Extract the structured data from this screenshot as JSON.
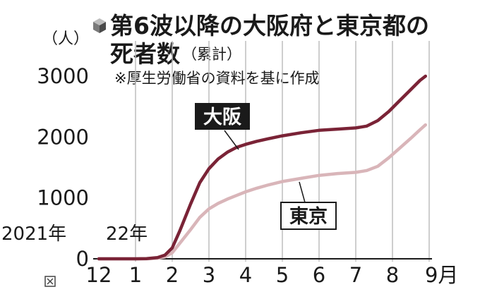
{
  "title_line1": "第6波以降の大阪府と東京都の",
  "title_line2": "死者数",
  "title_suffix": "（累計）",
  "source_note": "※厚生労働省の資料を基に作成",
  "icon": "cube-icon",
  "corner_icon": "expand-icon",
  "chart_data": {
    "type": "line",
    "ylabel": "（人）",
    "ylim": [
      0,
      3000
    ],
    "yticks": [
      "0",
      "1000",
      "2000",
      "3000"
    ],
    "xlim": [
      0,
      9
    ],
    "xticks": [
      {
        "label": "12",
        "x": 0
      },
      {
        "label": "1",
        "x": 1
      },
      {
        "label": "2",
        "x": 2
      },
      {
        "label": "3",
        "x": 3
      },
      {
        "label": "4",
        "x": 4
      },
      {
        "label": "5",
        "x": 5
      },
      {
        "label": "6",
        "x": 6
      },
      {
        "label": "7",
        "x": 7
      },
      {
        "label": "8",
        "x": 8
      },
      {
        "label": "9月",
        "x": 9
      }
    ],
    "year_labels": [
      "2021年",
      "22年"
    ],
    "grid": "vertical",
    "series": [
      {
        "name": "大阪",
        "color": "#7a2336",
        "x": [
          0,
          0.5,
          1,
          1.3,
          1.6,
          1.8,
          2,
          2.2,
          2.5,
          2.75,
          3,
          3.25,
          3.5,
          3.75,
          4,
          4.3,
          4.6,
          5,
          5.5,
          6,
          6.5,
          7,
          7.3,
          7.6,
          7.9,
          8.2,
          8.5,
          8.75,
          8.9
        ],
        "values": [
          0,
          0,
          0,
          2,
          20,
          60,
          180,
          450,
          900,
          1250,
          1480,
          1640,
          1750,
          1830,
          1880,
          1930,
          1970,
          2020,
          2070,
          2110,
          2130,
          2150,
          2180,
          2270,
          2420,
          2600,
          2780,
          2930,
          3000
        ]
      },
      {
        "name": "東京",
        "color": "#d9b5b9",
        "x": [
          0,
          0.5,
          1,
          1.3,
          1.6,
          1.8,
          2,
          2.2,
          2.5,
          2.75,
          3,
          3.25,
          3.5,
          3.75,
          4,
          4.3,
          4.6,
          5,
          5.5,
          6,
          6.5,
          7,
          7.3,
          7.6,
          7.9,
          8.2,
          8.5,
          8.75,
          8.9
        ],
        "values": [
          0,
          0,
          0,
          0,
          10,
          30,
          100,
          250,
          480,
          680,
          820,
          910,
          980,
          1040,
          1100,
          1160,
          1210,
          1270,
          1320,
          1370,
          1400,
          1420,
          1450,
          1520,
          1660,
          1820,
          1980,
          2120,
          2200
        ]
      }
    ]
  }
}
